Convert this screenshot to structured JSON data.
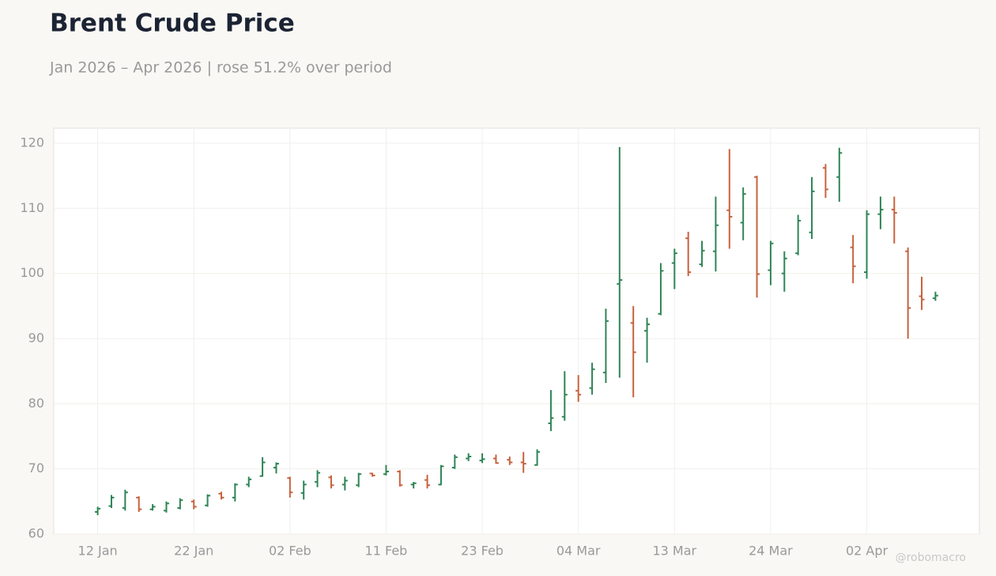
{
  "chart_data": {
    "type": "ohlc",
    "title": "Brent Crude Price",
    "subtitle": "Jan 2026 – Apr 2026 | rose 51.2% over period",
    "watermark": "@robomacro",
    "categories": [
      "12 Jan",
      null,
      null,
      null,
      null,
      null,
      null,
      "22 Jan",
      null,
      null,
      null,
      null,
      null,
      null,
      "02 Feb",
      null,
      null,
      null,
      null,
      null,
      null,
      "11 Feb",
      null,
      null,
      null,
      null,
      null,
      null,
      "23 Feb",
      null,
      null,
      null,
      null,
      null,
      null,
      "04 Mar",
      null,
      null,
      null,
      null,
      null,
      null,
      "13 Mar",
      null,
      null,
      null,
      null,
      null,
      null,
      "24 Mar",
      null,
      null,
      null,
      null,
      null,
      null,
      "02 Apr",
      null,
      null,
      null,
      null,
      null
    ],
    "open": [
      63.4,
      64.3,
      64.0,
      65.6,
      63.8,
      63.6,
      64.0,
      65.0,
      64.4,
      66.2,
      65.6,
      67.6,
      68.9,
      70.2,
      68.6,
      66.3,
      68.0,
      68.7,
      67.6,
      67.5,
      69.3,
      69.2,
      69.6,
      67.6,
      68.3,
      67.6,
      70.2,
      71.6,
      71.3,
      71.6,
      71.4,
      71.0,
      70.6,
      77.0,
      78.0,
      82.0,
      82.4,
      84.8,
      98.4,
      92.4,
      91.2,
      93.8,
      101.6,
      105.4,
      101.4,
      103.4,
      109.7,
      107.8,
      114.8,
      100.5,
      100.0,
      103.1,
      106.3,
      116.2,
      114.8,
      104.0,
      100.2,
      109.1,
      109.8,
      103.4,
      96.5,
      96.2
    ],
    "high": [
      64.2,
      66.0,
      66.8,
      65.8,
      64.6,
      65.0,
      65.5,
      65.3,
      66.1,
      66.5,
      67.8,
      68.8,
      71.8,
      71.0,
      68.8,
      68.2,
      69.8,
      69.0,
      68.8,
      69.4,
      69.4,
      70.6,
      69.8,
      68.0,
      69.1,
      70.6,
      72.2,
      72.4,
      72.4,
      72.2,
      71.9,
      72.6,
      73.0,
      82.1,
      85.0,
      84.4,
      86.3,
      94.6,
      119.4,
      95.0,
      93.2,
      101.6,
      103.8,
      106.4,
      105.0,
      111.8,
      119.1,
      113.2,
      115.0,
      105.0,
      103.4,
      109.0,
      114.8,
      116.8,
      119.3,
      105.9,
      109.7,
      111.8,
      111.8,
      104.0,
      99.5,
      97.2
    ],
    "low": [
      62.9,
      64.0,
      63.6,
      63.4,
      63.6,
      63.3,
      63.8,
      63.8,
      64.2,
      65.3,
      65.0,
      67.2,
      68.8,
      69.3,
      65.6,
      65.3,
      67.2,
      67.0,
      66.7,
      67.2,
      68.8,
      69.0,
      67.3,
      67.0,
      67.0,
      67.5,
      70.0,
      71.2,
      70.9,
      70.8,
      70.6,
      69.4,
      70.5,
      75.8,
      77.4,
      80.3,
      81.4,
      83.2,
      84.0,
      81.0,
      86.3,
      93.6,
      97.6,
      99.6,
      101.0,
      100.3,
      103.8,
      105.1,
      96.3,
      98.2,
      97.2,
      102.8,
      105.3,
      111.6,
      111.0,
      98.5,
      99.2,
      106.8,
      104.6,
      90.0,
      94.4,
      95.8
    ],
    "close": [
      63.9,
      65.6,
      66.4,
      63.8,
      64.2,
      64.7,
      65.2,
      64.2,
      65.9,
      65.6,
      67.6,
      68.4,
      71.0,
      70.8,
      66.4,
      67.6,
      69.4,
      67.5,
      68.2,
      69.2,
      69.0,
      69.6,
      67.5,
      67.8,
      67.5,
      70.4,
      71.8,
      71.9,
      71.5,
      70.9,
      71.0,
      70.8,
      72.6,
      77.8,
      81.4,
      81.4,
      85.3,
      92.7,
      99.0,
      87.9,
      92.2,
      100.4,
      103.1,
      100.2,
      103.5,
      107.4,
      108.7,
      112.2,
      99.9,
      104.6,
      102.3,
      108.1,
      112.6,
      112.9,
      118.5,
      101.1,
      109.1,
      109.8,
      109.3,
      94.7,
      96.0,
      96.6
    ],
    "up_color": "#2e8555",
    "down_color": "#c8623f",
    "ylim": [
      60,
      122.3
    ],
    "yticks": [
      60,
      70,
      80,
      90,
      100,
      110,
      120
    ],
    "grid": true
  }
}
